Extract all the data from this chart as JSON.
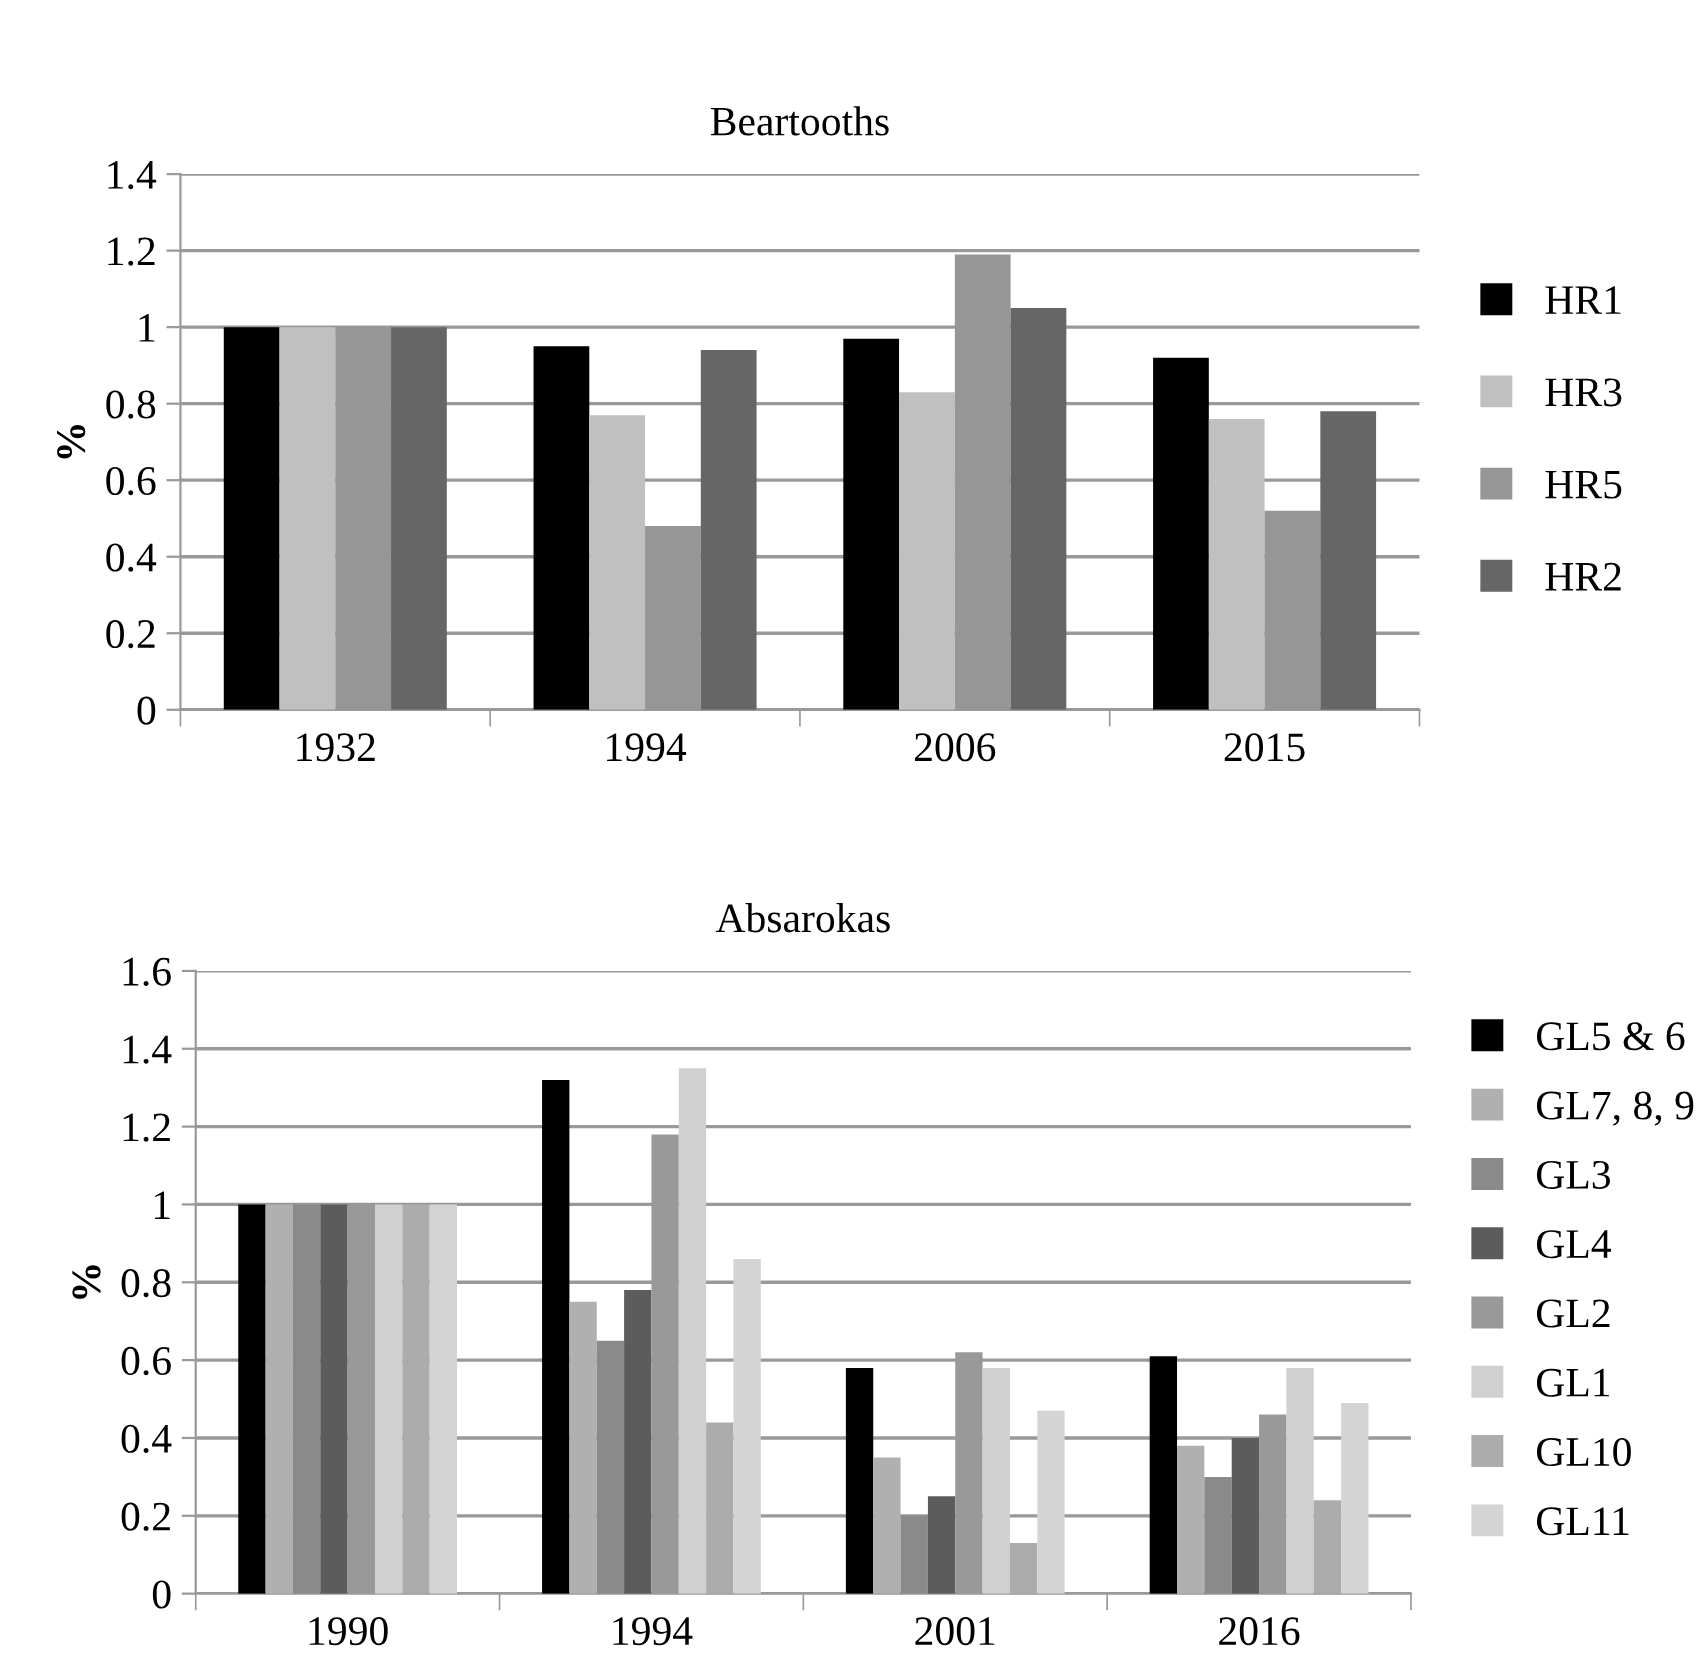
{
  "chart_data": [
    {
      "type": "bar",
      "title": "Beartooths",
      "ylabel": "%",
      "categories": [
        "1932",
        "1994",
        "2006",
        "2015"
      ],
      "ylim": [
        0,
        1.4
      ],
      "yticks": [
        0,
        0.2,
        0.4,
        0.6,
        0.8,
        1,
        1.2,
        1.4
      ],
      "grid": "y",
      "legend": "right",
      "series": [
        {
          "name": "HR1",
          "color": "#000000",
          "values": [
            1,
            0.95,
            0.97,
            0.92
          ]
        },
        {
          "name": "HR3",
          "color": "#c0c0c0",
          "values": [
            1,
            0.77,
            0.83,
            0.76
          ]
        },
        {
          "name": "HR5",
          "color": "#969696",
          "values": [
            1,
            0.48,
            1.19,
            0.52
          ]
        },
        {
          "name": "HR2",
          "color": "#666666",
          "values": [
            1,
            0.94,
            1.05,
            0.78
          ]
        }
      ]
    },
    {
      "type": "bar",
      "title": "Absarokas",
      "ylabel": "%",
      "categories": [
        "1990",
        "1994",
        "2001",
        "2016"
      ],
      "ylim": [
        0,
        1.6
      ],
      "yticks": [
        0,
        0.2,
        0.4,
        0.6,
        0.8,
        1,
        1.2,
        1.4,
        1.6
      ],
      "grid": "y",
      "legend": "right",
      "series": [
        {
          "name": "GL5 & 6",
          "color": "#000000",
          "values": [
            1,
            1.32,
            0.58,
            0.61
          ]
        },
        {
          "name": "GL7, 8, 9",
          "color": "#b0b0b0",
          "values": [
            1,
            0.75,
            0.35,
            0.38
          ]
        },
        {
          "name": "GL3",
          "color": "#8a8a8a",
          "values": [
            1,
            0.65,
            0.2,
            0.3
          ]
        },
        {
          "name": "GL4",
          "color": "#5c5c5c",
          "values": [
            1,
            0.78,
            0.25,
            0.4
          ]
        },
        {
          "name": "GL2",
          "color": "#999999",
          "values": [
            1,
            1.18,
            0.62,
            0.46
          ]
        },
        {
          "name": "GL1",
          "color": "#d0d0d0",
          "values": [
            1,
            1.35,
            0.58,
            0.58
          ]
        },
        {
          "name": "GL10",
          "color": "#acacac",
          "values": [
            1,
            0.44,
            0.13,
            0.24
          ]
        },
        {
          "name": "GL11",
          "color": "#d4d4d4",
          "values": [
            1,
            0.86,
            0.47,
            0.49
          ]
        }
      ]
    }
  ]
}
